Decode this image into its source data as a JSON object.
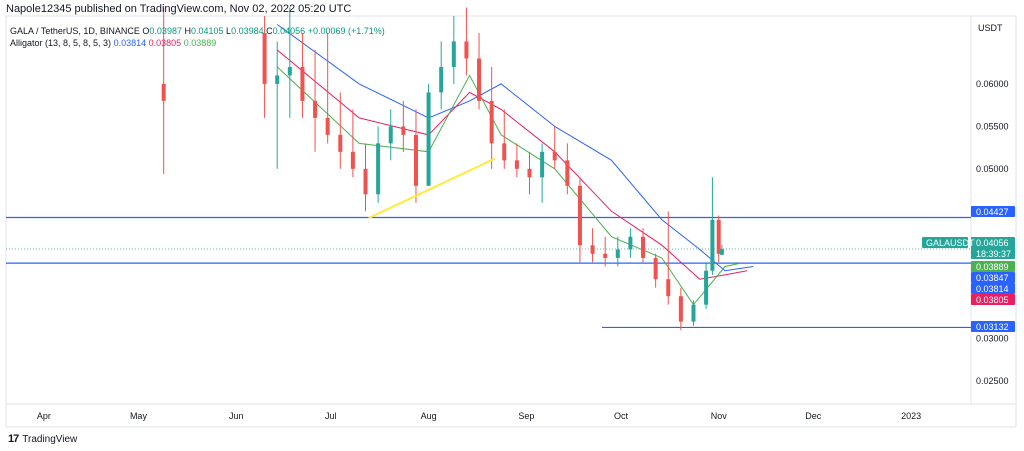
{
  "header": {
    "publisher_line": "Napole12345 published on TradingView.com, Nov 02, 2022 05:20 UTC"
  },
  "legend": {
    "symbol": "GALA / TetherUS, 1D, BINANCE",
    "open_label": "O",
    "open": "0.03987",
    "high_label": "H",
    "high": "0.04105",
    "low_label": "L",
    "low": "0.03984",
    "close_label": "C",
    "close": "0.04056",
    "change": "+0.00069 (+1.71%)",
    "indicator_name": "Alligator (13, 8, 5, 8, 5, 3)",
    "jaw": "0.03814",
    "teeth": "0.03805",
    "lips": "0.03889"
  },
  "footer": {
    "brand": "TradingView",
    "logo_glyph": "17"
  },
  "colors": {
    "up": "#26a69a",
    "down": "#ef5350",
    "jaw": "#2962ff",
    "teeth": "#e91e63",
    "lips": "#4caf50",
    "hline": "#2962ff",
    "trend": "#ffeb3b"
  },
  "chart_data": {
    "type": "candlestick",
    "symbol_tag": "GALAUSDT",
    "y_axis_title": "USDT",
    "ylim": [
      0.0223,
      0.068
    ],
    "y_ticks": [
      "0.06000",
      "0.05500",
      "0.05000",
      "0.04500",
      "0.03000",
      "0.02500"
    ],
    "x_ticks": [
      "Apr",
      "May",
      "Jun",
      "Jul",
      "Aug",
      "Sep",
      "Oct",
      "Nov",
      "Dec",
      "2023"
    ],
    "grid": false,
    "horizontal_lines": [
      0.04427,
      0.03889,
      0.03132
    ],
    "price_tags": [
      {
        "value": "0.04427",
        "color": "#2962ff"
      },
      {
        "value": "0.04056",
        "color": "#26a69a",
        "countdown": "18:39:37"
      },
      {
        "value": "0.03889",
        "color": "#4caf50"
      },
      {
        "value": "0.03847",
        "color": "#2962ff"
      },
      {
        "value": "0.03814",
        "color": "#2962ff"
      },
      {
        "value": "0.03805",
        "color": "#e91e63"
      },
      {
        "value": "0.03132",
        "color": "#2962ff"
      }
    ],
    "trendline": {
      "from": [
        "Jul 13",
        0.0442
      ],
      "to": [
        "Aug 22",
        0.0512
      ]
    },
    "candles": [
      [
        "May 09",
        0.06,
        0.069,
        0.0494,
        0.058
      ],
      [
        "Jun 10",
        0.066,
        0.068,
        0.056,
        0.06
      ],
      [
        "Jun 14",
        0.06,
        0.065,
        0.05,
        0.061
      ],
      [
        "Jun 18",
        0.061,
        0.069,
        0.056,
        0.062
      ],
      [
        "Jun 22",
        0.062,
        0.066,
        0.056,
        0.058
      ],
      [
        "Jun 26",
        0.058,
        0.064,
        0.052,
        0.056
      ],
      [
        "Jun 30",
        0.056,
        0.066,
        0.053,
        0.054
      ],
      [
        "Jul 04",
        0.054,
        0.059,
        0.05,
        0.052
      ],
      [
        "Jul 08",
        0.052,
        0.057,
        0.049,
        0.05
      ],
      [
        "Jul 12",
        0.05,
        0.053,
        0.045,
        0.047
      ],
      [
        "Jul 16",
        0.047,
        0.055,
        0.046,
        0.053
      ],
      [
        "Jul 20",
        0.053,
        0.057,
        0.051,
        0.055
      ],
      [
        "Jul 24",
        0.055,
        0.058,
        0.052,
        0.054
      ],
      [
        "Jul 28",
        0.054,
        0.057,
        0.046,
        0.048
      ],
      [
        "Aug 01",
        0.048,
        0.06,
        0.048,
        0.059
      ],
      [
        "Aug 05",
        0.059,
        0.065,
        0.057,
        0.062
      ],
      [
        "Aug 09",
        0.062,
        0.068,
        0.06,
        0.065
      ],
      [
        "Aug 13",
        0.065,
        0.069,
        0.061,
        0.063
      ],
      [
        "Aug 17",
        0.063,
        0.066,
        0.057,
        0.058
      ],
      [
        "Aug 21",
        0.058,
        0.062,
        0.05,
        0.053
      ],
      [
        "Aug 25",
        0.053,
        0.057,
        0.05,
        0.051
      ],
      [
        "Aug 29",
        0.051,
        0.053,
        0.049,
        0.05
      ],
      [
        "Sep 02",
        0.05,
        0.052,
        0.047,
        0.049
      ],
      [
        "Sep 06",
        0.049,
        0.053,
        0.046,
        0.052
      ],
      [
        "Sep 10",
        0.052,
        0.055,
        0.05,
        0.051
      ],
      [
        "Sep 14",
        0.051,
        0.053,
        0.047,
        0.048
      ],
      [
        "Sep 18",
        0.048,
        0.049,
        0.039,
        0.041
      ],
      [
        "Sep 22",
        0.041,
        0.043,
        0.039,
        0.04
      ],
      [
        "Sep 26",
        0.04,
        0.042,
        0.0385,
        0.0395
      ],
      [
        "Sep 30",
        0.0395,
        0.042,
        0.0385,
        0.0405
      ],
      [
        "Oct 04",
        0.0405,
        0.043,
        0.0395,
        0.042
      ],
      [
        "Oct 08",
        0.042,
        0.043,
        0.039,
        0.0395
      ],
      [
        "Oct 12",
        0.0395,
        0.04,
        0.036,
        0.037
      ],
      [
        "Oct 16",
        0.037,
        0.045,
        0.034,
        0.035
      ],
      [
        "Oct 20",
        0.035,
        0.036,
        0.031,
        0.032
      ],
      [
        "Oct 24",
        0.032,
        0.0345,
        0.0315,
        0.034
      ],
      [
        "Oct 28",
        0.034,
        0.039,
        0.0335,
        0.038
      ],
      [
        "Oct 30",
        0.038,
        0.049,
        0.0375,
        0.044
      ],
      [
        "Nov 01",
        0.044,
        0.0445,
        0.039,
        0.04
      ],
      [
        "Nov 02",
        0.03987,
        0.04105,
        0.03984,
        0.04056
      ]
    ],
    "series": [
      {
        "name": "Jaw",
        "color": "#2962ff",
        "points": [
          [
            "Jun 14",
            0.067
          ],
          [
            "Jul 10",
            0.06
          ],
          [
            "Aug 01",
            0.056
          ],
          [
            "Aug 14",
            0.058
          ],
          [
            "Aug 24",
            0.06
          ],
          [
            "Sep 10",
            0.055
          ],
          [
            "Sep 28",
            0.051
          ],
          [
            "Oct 14",
            0.044
          ],
          [
            "Oct 26",
            0.0405
          ],
          [
            "Nov 03",
            0.038
          ],
          [
            "Nov 12",
            0.0385
          ]
        ]
      },
      {
        "name": "Teeth",
        "color": "#e91e63",
        "points": [
          [
            "Jun 14",
            0.064
          ],
          [
            "Jul 10",
            0.056
          ],
          [
            "Aug 01",
            0.054
          ],
          [
            "Aug 14",
            0.059
          ],
          [
            "Aug 24",
            0.057
          ],
          [
            "Sep 10",
            0.052
          ],
          [
            "Sep 28",
            0.045
          ],
          [
            "Oct 14",
            0.041
          ],
          [
            "Oct 26",
            0.037
          ],
          [
            "Nov 03",
            0.0375
          ],
          [
            "Nov 10",
            0.038
          ]
        ]
      },
      {
        "name": "Lips",
        "color": "#4caf50",
        "points": [
          [
            "Jun 14",
            0.062
          ],
          [
            "Jul 10",
            0.053
          ],
          [
            "Aug 01",
            0.052
          ],
          [
            "Aug 14",
            0.061
          ],
          [
            "Aug 24",
            0.054
          ],
          [
            "Sep 10",
            0.05
          ],
          [
            "Sep 28",
            0.042
          ],
          [
            "Oct 14",
            0.0395
          ],
          [
            "Oct 24",
            0.034
          ],
          [
            "Nov 03",
            0.0385
          ],
          [
            "Nov 08",
            0.0389
          ]
        ]
      }
    ]
  }
}
